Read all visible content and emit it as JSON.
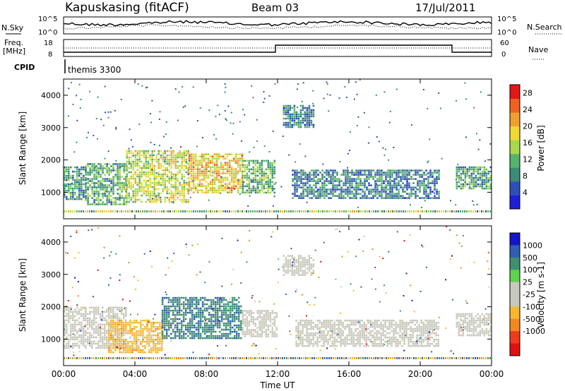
{
  "header": {
    "station": "Kapuskasing (fitACF)",
    "beam": "Beam 03",
    "date": "17/Jul/2011"
  },
  "top_panel": {
    "nsky_label": "N.Sky",
    "nsearch_label": "N.Search",
    "left_ticks": [
      "10^5",
      "10^0"
    ],
    "right_ticks": [
      "10^5",
      "10^0"
    ],
    "freq_label_1": "Freq.",
    "freq_label_2": "[MHz]",
    "freq_ticks": [
      "18",
      "8"
    ],
    "nave_label": "Nave",
    "nave_ticks": [
      "60",
      "0"
    ],
    "cpid_label": "CPID",
    "cpid_value": "themis 3300"
  },
  "colors": {
    "power_scale": [
      "#1f1fd9",
      "#2e4fb8",
      "#3c8a78",
      "#55b36a",
      "#a8d84a",
      "#f0d838",
      "#f0a030",
      "#f06020",
      "#e01818"
    ],
    "velocity_scale": [
      "#1515c8",
      "#2e5fb0",
      "#3f8f70",
      "#5fd24f",
      "#c8c8bc",
      "#c8c8bc",
      "#f5b830",
      "#f08a20",
      "#ee3c1c",
      "#e01010"
    ]
  },
  "chart_data": [
    {
      "type": "heatmap",
      "title": "",
      "xlabel": "",
      "ylabel": "Slant Range [km]",
      "x_ticks": [
        "00:00",
        "04:00",
        "08:00",
        "12:00",
        "16:00",
        "20:00",
        "00:00"
      ],
      "y_ticks": [
        "1000",
        "2000",
        "3000",
        "4000"
      ],
      "xlim": [
        0,
        24
      ],
      "ylim": [
        180,
        4500
      ],
      "colorbar": {
        "label": "Power [dB]",
        "ticks": [
          "4",
          "8",
          "12",
          "16",
          "20",
          "24",
          "28"
        ],
        "range": [
          0,
          30
        ]
      },
      "regions": [
        {
          "x": [
            0.0,
            1.2
          ],
          "y": [
            800,
            1800
          ],
          "value": 9
        },
        {
          "x": [
            1.2,
            3.5
          ],
          "y": [
            600,
            1900
          ],
          "value": 11
        },
        {
          "x": [
            3.5,
            7.0
          ],
          "y": [
            700,
            2300
          ],
          "value": 16
        },
        {
          "x": [
            7.0,
            10.0
          ],
          "y": [
            1000,
            2200
          ],
          "value": 19
        },
        {
          "x": [
            10.0,
            11.8
          ],
          "y": [
            1000,
            2000
          ],
          "value": 12
        },
        {
          "x": [
            12.3,
            14.0
          ],
          "y": [
            3000,
            3700
          ],
          "value": 8
        },
        {
          "x": [
            12.8,
            21.0
          ],
          "y": [
            800,
            1700
          ],
          "value": 8
        },
        {
          "x": [
            22.0,
            24.0
          ],
          "y": [
            1100,
            1800
          ],
          "value": 10
        }
      ]
    },
    {
      "type": "heatmap",
      "title": "",
      "xlabel": "Time UT",
      "ylabel": "Slant Range [km]",
      "x_ticks": [
        "00:00",
        "04:00",
        "08:00",
        "12:00",
        "16:00",
        "20:00",
        "00:00"
      ],
      "y_ticks": [
        "1000",
        "2000",
        "3000",
        "4000"
      ],
      "xlim": [
        0,
        24
      ],
      "ylim": [
        180,
        4500
      ],
      "colorbar": {
        "label": "Velocity [m s-1]",
        "ticks": [
          "1000",
          "500",
          "100",
          "25",
          "-25",
          "-100",
          "-500",
          "-1000"
        ]
      },
      "regions": [
        {
          "x": [
            0.0,
            3.5
          ],
          "y": [
            700,
            2000
          ],
          "value": 0
        },
        {
          "x": [
            2.5,
            5.5
          ],
          "y": [
            600,
            1600
          ],
          "value": -300
        },
        {
          "x": [
            5.5,
            10.0
          ],
          "y": [
            1000,
            2300
          ],
          "value": 400
        },
        {
          "x": [
            10.0,
            12.0
          ],
          "y": [
            1100,
            1900
          ],
          "value": 0
        },
        {
          "x": [
            12.3,
            14.0
          ],
          "y": [
            3000,
            3600
          ],
          "value": 0
        },
        {
          "x": [
            13.0,
            21.0
          ],
          "y": [
            800,
            1600
          ],
          "value": 0
        },
        {
          "x": [
            22.0,
            24.0
          ],
          "y": [
            1100,
            1800
          ],
          "value": 0
        }
      ]
    }
  ]
}
